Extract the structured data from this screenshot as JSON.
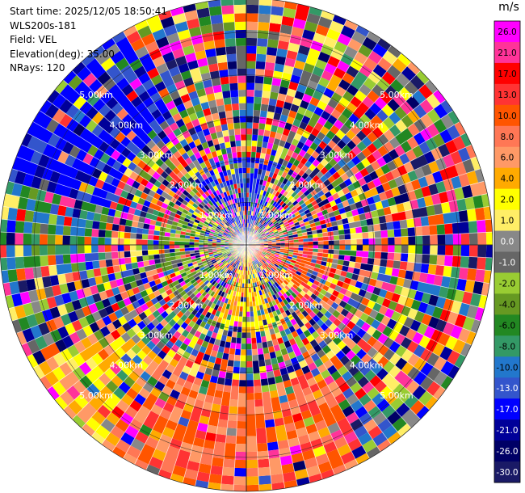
{
  "info": {
    "start_time": "Start time: 2025/12/05 18:50:41",
    "instrument": "WLS200s-181",
    "field": "Field: VEL",
    "elevation": "Elevation(deg): 35.00",
    "nrays": "NRays: 120"
  },
  "chart_data": {
    "type": "heatmap",
    "projection": "polar-ppi",
    "field": "VEL",
    "units": "m/s",
    "n_rays": 120,
    "range_rings_km": [
      1.0,
      2.0,
      3.0,
      4.0,
      5.0
    ],
    "ring_labels": [
      "1.00km",
      "2.00km",
      "3.00km",
      "4.00km",
      "5.00km"
    ],
    "max_range_km": 5.8,
    "colorbar": {
      "title": "m/s",
      "ticks": [
        "26.0",
        "21.0",
        "17.0",
        "13.0",
        "10.0",
        "8.0",
        "6.0",
        "4.0",
        "2.0",
        "1.0",
        "0.0",
        "-1.0",
        "-2.0",
        "-4.0",
        "-6.0",
        "-8.0",
        "-10.0",
        "-13.0",
        "-17.0",
        "-21.0",
        "-26.0",
        "-30.0"
      ],
      "colors": [
        "#ff00ff",
        "#ff3399",
        "#ff0000",
        "#ff3333",
        "#ff5500",
        "#ff7755",
        "#ff9966",
        "#ffaa00",
        "#ffff00",
        "#ffee66",
        "#888888",
        "#666666",
        "#99cc33",
        "#669922",
        "#228822",
        "#339966",
        "#2277cc",
        "#3355cc",
        "#0000ff",
        "#000099",
        "#000066",
        "#1a1a66"
      ]
    },
    "sectors": [
      {
        "az_from": 0,
        "az_to": 60,
        "description": "mostly negative (blue) near range, mixed noise"
      },
      {
        "az_from": 270,
        "az_to": 330,
        "description": "strong negative velocities -17 to -21 m/s at far range"
      },
      {
        "az_from": 150,
        "az_to": 210,
        "description": "strong positive velocities 6 to 13 m/s at far range"
      },
      {
        "az_from": 60,
        "az_to": 150,
        "description": "positive noise near center"
      }
    ]
  }
}
